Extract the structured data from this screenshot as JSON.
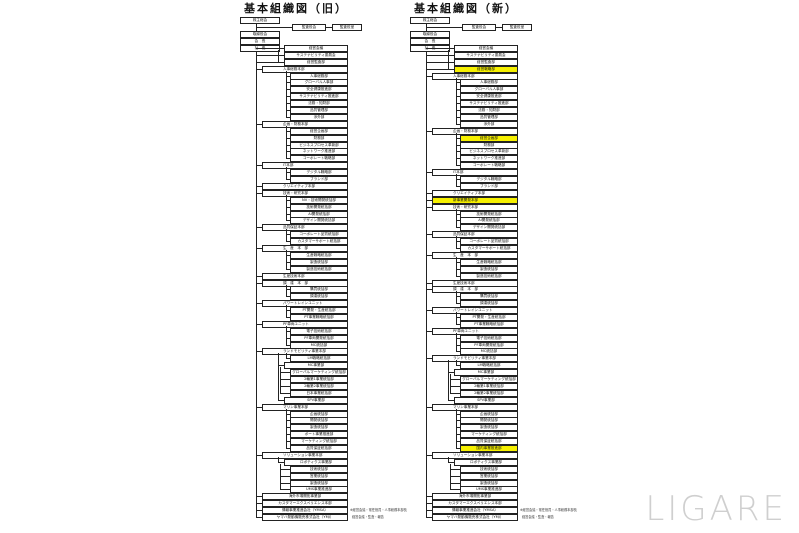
{
  "charts": [
    {
      "title": "基本組織図（旧）",
      "header": {
        "shareholders": "株主総会",
        "auditors": "監査役会",
        "auditors_office": "監査役室",
        "board": "取締役会",
        "chairman": "会　長",
        "president": "社　長"
      },
      "rows": [
        {
          "l": 2,
          "t": "経営会議"
        },
        {
          "l": 2,
          "t": "サステナビリティ委員会"
        },
        {
          "l": 2,
          "t": "経営監査部"
        },
        {
          "l": 1,
          "t": "人事総務本部"
        },
        {
          "l": 3,
          "t": "人事総務部"
        },
        {
          "l": 3,
          "t": "グローバル人事部"
        },
        {
          "l": 3,
          "t": "安全健康推進部"
        },
        {
          "l": 3,
          "t": "サステナビリティ推進部"
        },
        {
          "l": 3,
          "t": "法務・知財部"
        },
        {
          "l": 3,
          "t": "品質管理部"
        },
        {
          "l": 3,
          "t": "渉外部"
        },
        {
          "l": 1,
          "t": "企画・財務本部"
        },
        {
          "l": 3,
          "t": "経営企画部"
        },
        {
          "l": 3,
          "t": "財務部"
        },
        {
          "l": 3,
          "t": "ビジネスプロセス革新部"
        },
        {
          "l": 3,
          "t": "ネットワーク推進部"
        },
        {
          "l": 3,
          "t": "コーポレート戦略部"
        },
        {
          "l": 1,
          "t": "IT本部"
        },
        {
          "l": 3,
          "t": "デジタル戦略部"
        },
        {
          "l": 3,
          "t": "ブランド部"
        },
        {
          "l": 1,
          "t": "クリエイティブ本部"
        },
        {
          "l": 1,
          "t": "技術・研究本部"
        },
        {
          "l": 3,
          "t": "NV・技術開発統括部"
        },
        {
          "l": 3,
          "t": "技術開発統括部"
        },
        {
          "l": 3,
          "t": "AI開発統括部"
        },
        {
          "l": 3,
          "t": "デザイン開発統括部"
        },
        {
          "l": 1,
          "t": "品質保証本部"
        },
        {
          "l": 3,
          "t": "コーポレート品質統括部"
        },
        {
          "l": 3,
          "t": "カスタマーサポート統括部"
        },
        {
          "l": 1,
          "t": "生　産　本　部"
        },
        {
          "l": 3,
          "t": "生産戦略統括部"
        },
        {
          "l": 3,
          "t": "製造統括部"
        },
        {
          "l": 3,
          "t": "製造技術統括部"
        },
        {
          "l": 1,
          "t": "生産技術本部"
        },
        {
          "l": 1,
          "t": "調　達　本　部"
        },
        {
          "l": 3,
          "t": "購買統括部"
        },
        {
          "l": 3,
          "t": "調達統括部"
        },
        {
          "l": 1,
          "t": "パワートレインユニット"
        },
        {
          "l": 3,
          "t": "PT開発・生産統括部"
        },
        {
          "l": 3,
          "t": "PT事業戦略統括部"
        },
        {
          "l": 1,
          "t": "PF車両ユニット"
        },
        {
          "l": 3,
          "t": "電子技術統括部"
        },
        {
          "l": 3,
          "t": "PF車両開発統括部"
        },
        {
          "l": 3,
          "t": "MC統括部"
        },
        {
          "l": 1,
          "t": "ランドモビリティ事業本部"
        },
        {
          "l": 3,
          "t": "LM戦略統括部"
        },
        {
          "l": 2,
          "t": "MC事業部"
        },
        {
          "l": 3,
          "t": "グローバルマーケティング統括部"
        },
        {
          "l": 3,
          "t": "2輪第1事業統括部"
        },
        {
          "l": 3,
          "t": "2輪第2事業統括部"
        },
        {
          "l": 3,
          "t": "日本事業統括部"
        },
        {
          "l": 2,
          "t": "SPV事業部"
        },
        {
          "l": 1,
          "t": "マリン事業本部"
        },
        {
          "l": 3,
          "t": "企画統括部"
        },
        {
          "l": 3,
          "t": "開発統括部"
        },
        {
          "l": 3,
          "t": "製造統括部"
        },
        {
          "l": 3,
          "t": "ボート事業推進部"
        },
        {
          "l": 3,
          "t": "マーケティング統括部"
        },
        {
          "l": 3,
          "t": "品質保証統括部"
        },
        {
          "l": 1,
          "t": "ソリューション事業本部"
        },
        {
          "l": 2,
          "t": "ロボティクス事業部"
        },
        {
          "l": 3,
          "t": "技術統括部"
        },
        {
          "l": 3,
          "t": "営業統括部"
        },
        {
          "l": 3,
          "t": "製造統括部"
        },
        {
          "l": 3,
          "t": "UMS事業推進部"
        },
        {
          "l": 1,
          "t": "海外市場開拓事業部",
          "c": true
        },
        {
          "l": 1,
          "t": "カスタマーエクスペリエンス本部",
          "c": true
        },
        {
          "l": 1,
          "t": "情報事業推進会社（YMSA）",
          "c": true
        },
        {
          "l": 1,
          "t": "ヤマハ発動機販売株式会社（YMJ）",
          "c": true
        }
      ],
      "notes": [
        "※経営会議・常任役員・人事総務本部長",
        "経営会議・監査・報告"
      ]
    },
    {
      "title": "基本組織図（新）",
      "header": {
        "shareholders": "株主総会",
        "auditors": "監査役会",
        "auditors_office": "監査役室",
        "board": "取締役会",
        "chairman": "会　長",
        "president": "社　長"
      },
      "rows": [
        {
          "l": 2,
          "t": "経営会議"
        },
        {
          "l": 2,
          "t": "サステナビリティ委員会"
        },
        {
          "l": 2,
          "t": "経営監査部"
        },
        {
          "l": 2,
          "t": "経営戦略部",
          "h": true
        },
        {
          "l": 1,
          "t": "人事総務本部"
        },
        {
          "l": 3,
          "t": "人事総務部"
        },
        {
          "l": 3,
          "t": "グローバル人事部"
        },
        {
          "l": 3,
          "t": "安全健康推進部"
        },
        {
          "l": 3,
          "t": "サステナビリティ推進部"
        },
        {
          "l": 3,
          "t": "法務・知財部"
        },
        {
          "l": 3,
          "t": "品質管理部"
        },
        {
          "l": 3,
          "t": "渉外部"
        },
        {
          "l": 1,
          "t": "企画・財務本部"
        },
        {
          "l": 3,
          "t": "経営企画部",
          "h": true
        },
        {
          "l": 3,
          "t": "財務部"
        },
        {
          "l": 3,
          "t": "ビジネスプロセス革新部"
        },
        {
          "l": 3,
          "t": "ネットワーク推進部"
        },
        {
          "l": 3,
          "t": "コーポレート戦略部"
        },
        {
          "l": 1,
          "t": "IT本部"
        },
        {
          "l": 3,
          "t": "デジタル戦略部"
        },
        {
          "l": 3,
          "t": "ブランド部"
        },
        {
          "l": 1,
          "t": "クリエイティブ本部"
        },
        {
          "l": 1,
          "t": "新事業開発本部",
          "h": true
        },
        {
          "l": 1,
          "t": "技術・研究本部"
        },
        {
          "l": 3,
          "t": "技術開発統括部"
        },
        {
          "l": 3,
          "t": "AI開発統括部"
        },
        {
          "l": 3,
          "t": "デザイン開発統括部"
        },
        {
          "l": 1,
          "t": "品質保証本部"
        },
        {
          "l": 3,
          "t": "コーポレート品質統括部"
        },
        {
          "l": 3,
          "t": "カスタマーサポート統括部"
        },
        {
          "l": 1,
          "t": "生　産　本　部"
        },
        {
          "l": 3,
          "t": "生産戦略統括部"
        },
        {
          "l": 3,
          "t": "製造統括部"
        },
        {
          "l": 3,
          "t": "製造技術統括部"
        },
        {
          "l": 1,
          "t": "生産技術本部"
        },
        {
          "l": 1,
          "t": "調　達　本　部"
        },
        {
          "l": 3,
          "t": "購買統括部"
        },
        {
          "l": 3,
          "t": "調達統括部"
        },
        {
          "l": 1,
          "t": "パワートレインユニット"
        },
        {
          "l": 3,
          "t": "PT開発・生産統括部"
        },
        {
          "l": 3,
          "t": "PT事業戦略統括部"
        },
        {
          "l": 1,
          "t": "PF車両ユニット"
        },
        {
          "l": 3,
          "t": "電子技術統括部"
        },
        {
          "l": 3,
          "t": "PF車両開発統括部"
        },
        {
          "l": 3,
          "t": "MC統括部"
        },
        {
          "l": 1,
          "t": "ランドモビリティ事業本部"
        },
        {
          "l": 3,
          "t": "LM戦略統括部"
        },
        {
          "l": 2,
          "t": "MC事業部"
        },
        {
          "l": 3,
          "t": "グローバルマーケティング統括部"
        },
        {
          "l": 3,
          "t": "2輪第1事業統括部"
        },
        {
          "l": 3,
          "t": "2輪第2事業統括部"
        },
        {
          "l": 2,
          "t": "SPV事業部"
        },
        {
          "l": 1,
          "t": "マリン事業本部"
        },
        {
          "l": 3,
          "t": "企画統括部"
        },
        {
          "l": 3,
          "t": "開発統括部"
        },
        {
          "l": 3,
          "t": "製造統括部"
        },
        {
          "l": 3,
          "t": "マーケティング統括部"
        },
        {
          "l": 3,
          "t": "品質保証統括部"
        },
        {
          "l": 3,
          "t": "国内事業推進部",
          "h": true
        },
        {
          "l": 1,
          "t": "ソリューション事業本部"
        },
        {
          "l": 2,
          "t": "ロボティクス事業部"
        },
        {
          "l": 3,
          "t": "技術統括部"
        },
        {
          "l": 3,
          "t": "営業統括部"
        },
        {
          "l": 3,
          "t": "製造統括部"
        },
        {
          "l": 3,
          "t": "UMS事業推進部"
        },
        {
          "l": 1,
          "t": "海外市場開拓事業部",
          "c": true
        },
        {
          "l": 1,
          "t": "カスタマーエクスペリエンス本部",
          "c": true
        },
        {
          "l": 1,
          "t": "情報事業推進会社（YMSA）",
          "c": true
        },
        {
          "l": 1,
          "t": "ヤマハ発動機販売株式会社（YMJ）",
          "c": true
        }
      ],
      "notes": [
        "※経営会議・常任役員・人事総務本部長",
        "経営会議・監査・報告"
      ]
    }
  ],
  "highlight_color": "#f6f000",
  "watermark": "LIGARE"
}
